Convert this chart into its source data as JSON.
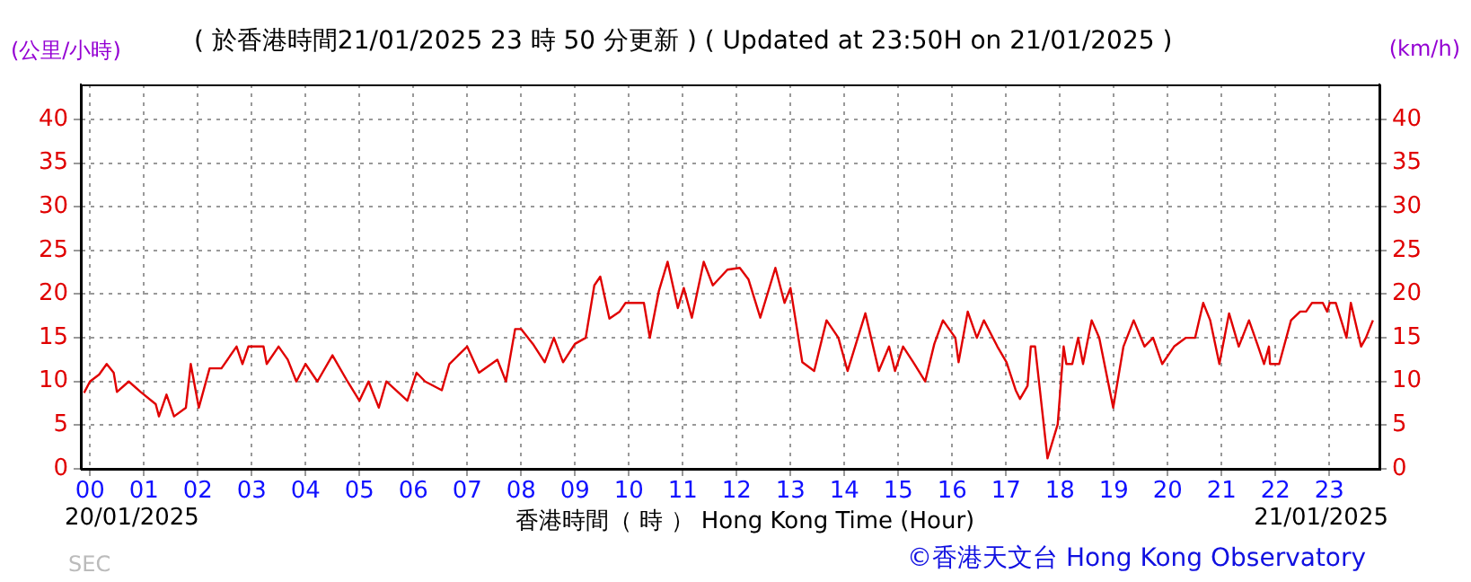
{
  "chart_data": {
    "type": "line",
    "title": "( 於香港時間21/01/2025 23 時 50 分更新 ) ( Updated at 23:50H on 21/01/2025 )",
    "ylabel": "(公里/小時)",
    "y2label": "(km/h)",
    "xlabel": "香港時間（ 時 ） Hong Kong Time (Hour)",
    "annotations": [
      "20/01/2025",
      "21/01/2025",
      "SEC",
      "©香港天文台 Hong Kong Observatory"
    ],
    "x": [
      -0.11,
      0.0,
      0.17,
      0.31,
      0.44,
      0.5,
      0.72,
      0.94,
      1.22,
      1.28,
      1.42,
      1.56,
      1.78,
      1.87,
      2.02,
      2.22,
      2.44,
      2.72,
      2.83,
      2.94,
      3.22,
      3.28,
      3.5,
      3.67,
      3.83,
      4.0,
      4.22,
      4.5,
      4.78,
      5.0,
      5.17,
      5.36,
      5.5,
      5.89,
      6.06,
      6.22,
      6.53,
      6.67,
      7.0,
      7.22,
      7.56,
      7.72,
      7.89,
      8.0,
      8.22,
      8.44,
      8.61,
      8.78,
      9.0,
      9.2,
      9.36,
      9.47,
      9.64,
      9.83,
      9.94,
      10.28,
      10.39,
      10.56,
      10.72,
      10.91,
      11.02,
      11.17,
      11.39,
      11.56,
      11.83,
      12.06,
      12.22,
      12.44,
      12.72,
      12.89,
      13.0,
      13.22,
      13.44,
      13.67,
      13.89,
      14.06,
      14.39,
      14.64,
      14.83,
      14.94,
      15.09,
      15.28,
      15.5,
      15.67,
      15.83,
      16.06,
      16.12,
      16.29,
      16.46,
      16.59,
      16.84,
      17.01,
      17.18,
      17.26,
      17.4,
      17.46,
      17.54,
      17.77,
      17.96,
      18.07,
      18.12,
      18.23,
      18.34,
      18.43,
      18.59,
      18.73,
      18.99,
      19.18,
      19.37,
      19.57,
      19.73,
      19.9,
      20.12,
      20.34,
      20.51,
      20.66,
      20.79,
      20.96,
      21.14,
      21.32,
      21.51,
      21.68,
      21.79,
      21.88,
      21.9,
      22.07,
      22.29,
      22.46,
      22.57,
      22.68,
      22.88,
      22.96,
      23.01,
      23.12,
      23.32,
      23.4,
      23.59,
      23.68,
      23.81
    ],
    "series": [
      {
        "color": "#e00000",
        "values": [
          8.7,
          10,
          10.8,
          12,
          11,
          8.8,
          10,
          8.8,
          7.4,
          6,
          8.5,
          6,
          7,
          12,
          7,
          11.5,
          11.5,
          14,
          12,
          14,
          14,
          12,
          14,
          12.5,
          10,
          12,
          10,
          13,
          10,
          7.8,
          10,
          7,
          10,
          7.8,
          11,
          10,
          9,
          12,
          14,
          11,
          12.5,
          10,
          16,
          16,
          14.3,
          12.2,
          15,
          12.2,
          14.3,
          15,
          21,
          22,
          17.2,
          18,
          19,
          19,
          15,
          20.4,
          23.7,
          18.4,
          20.7,
          17.3,
          23.7,
          21,
          22.8,
          23,
          21.7,
          17.3,
          23,
          19,
          20.7,
          12.2,
          11.2,
          17,
          15,
          11.2,
          17.8,
          11.2,
          14,
          11.2,
          14,
          12.2,
          10,
          14.3,
          17,
          15,
          12.2,
          18,
          15,
          17,
          14,
          12.2,
          9,
          8,
          9.5,
          14,
          14,
          1.2,
          5.1,
          14,
          12,
          12,
          15,
          12,
          17,
          15,
          7,
          14,
          17,
          14,
          15,
          12,
          14,
          15,
          15,
          19,
          17,
          12,
          17.8,
          14,
          17,
          14,
          12,
          14,
          12,
          12,
          17,
          18,
          18,
          19,
          19,
          18,
          19,
          19,
          15,
          19,
          14,
          15,
          17
        ]
      }
    ],
    "xlim": [
      -0.17,
      23.93
    ],
    "xticks": [
      {
        "value": 0,
        "label": "00"
      },
      {
        "value": 1,
        "label": "01"
      },
      {
        "value": 2,
        "label": "02"
      },
      {
        "value": 3,
        "label": "03"
      },
      {
        "value": 4,
        "label": "04"
      },
      {
        "value": 5,
        "label": "05"
      },
      {
        "value": 6,
        "label": "06"
      },
      {
        "value": 7,
        "label": "07"
      },
      {
        "value": 8,
        "label": "08"
      },
      {
        "value": 9,
        "label": "09"
      },
      {
        "value": 10,
        "label": "10"
      },
      {
        "value": 11,
        "label": "11"
      },
      {
        "value": 12,
        "label": "12"
      },
      {
        "value": 13,
        "label": "13"
      },
      {
        "value": 14,
        "label": "14"
      },
      {
        "value": 15,
        "label": "15"
      },
      {
        "value": 16,
        "label": "16"
      },
      {
        "value": 17,
        "label": "17"
      },
      {
        "value": 18,
        "label": "18"
      },
      {
        "value": 19,
        "label": "19"
      },
      {
        "value": 20,
        "label": "20"
      },
      {
        "value": 21,
        "label": "21"
      },
      {
        "value": 22,
        "label": "22"
      },
      {
        "value": 23,
        "label": "23"
      }
    ],
    "ylim": [
      0,
      44
    ],
    "yticks": [
      0,
      5,
      10,
      15,
      20,
      25,
      30,
      35,
      40
    ],
    "y2lim": [
      0,
      44
    ],
    "y2ticks": [
      0,
      5,
      10,
      15,
      20,
      25,
      30,
      35,
      40
    ],
    "grid": true,
    "legend": false,
    "marker": "none",
    "line_style": "solid"
  }
}
